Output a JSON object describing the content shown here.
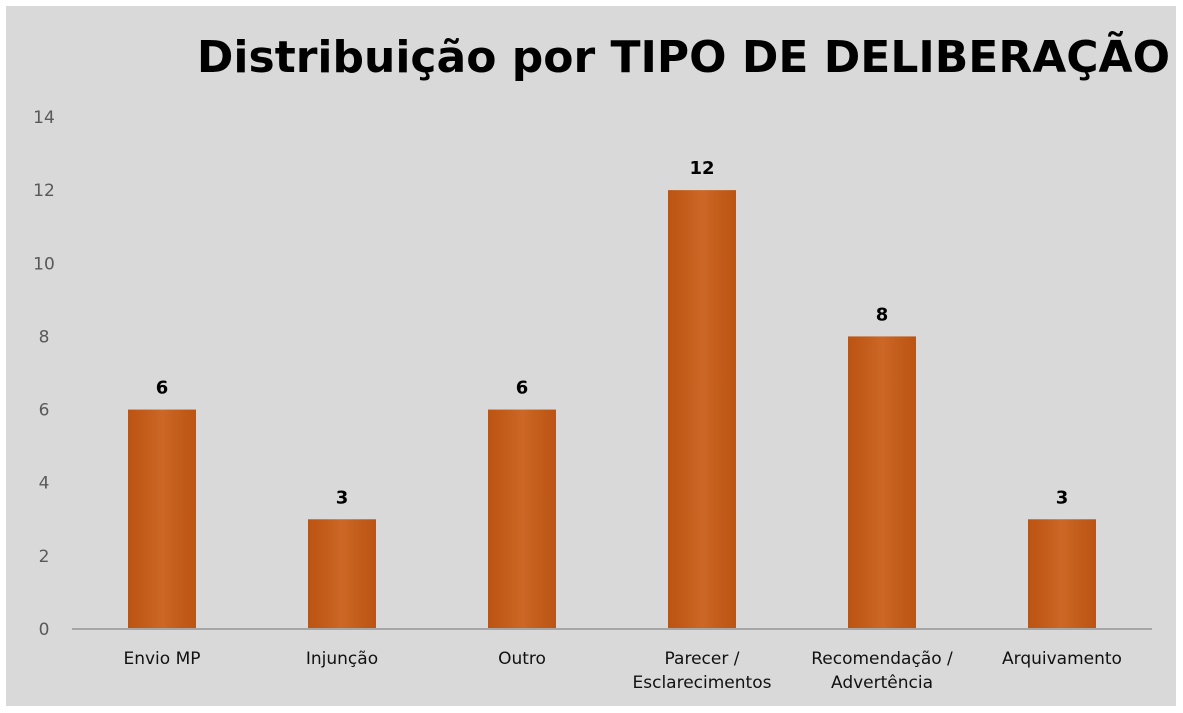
{
  "chart_data": {
    "type": "bar",
    "title": "Distribuição por TIPO DE DELIBERAÇÃO",
    "categories": [
      "Envio MP",
      "Injunção",
      "Outro",
      "Parecer /\nEsclarecimentos",
      "Recomendação /\nAdvertência",
      "Arquivamento"
    ],
    "values": [
      6,
      3,
      6,
      12,
      8,
      3
    ],
    "color": "#c85a14",
    "ylim": [
      0,
      14
    ],
    "yticks": [
      0,
      2,
      4,
      6,
      8,
      10,
      12,
      14
    ],
    "grid": false
  }
}
